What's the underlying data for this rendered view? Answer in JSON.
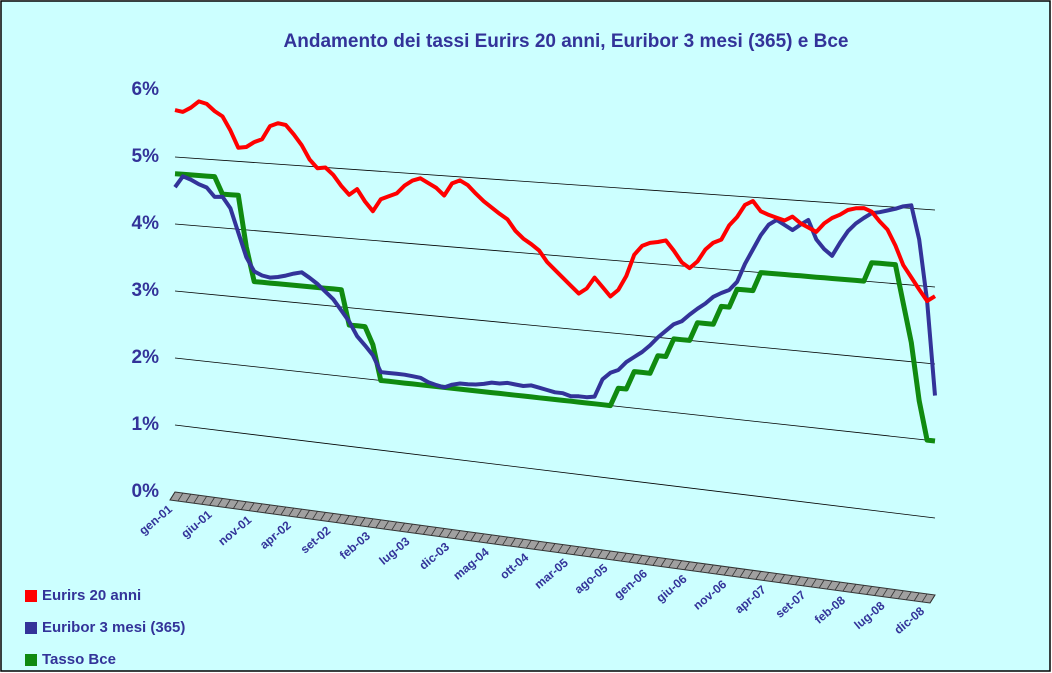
{
  "chart_data": {
    "type": "line",
    "title": "Andamento dei tassi Eurirs 20 anni, Euribor 3 mesi (365) e Bce",
    "categories": [
      "gen-01",
      null,
      null,
      null,
      null,
      "giu-01",
      null,
      null,
      null,
      null,
      "nov-01",
      null,
      null,
      null,
      null,
      "apr-02",
      null,
      null,
      null,
      null,
      "set-02",
      null,
      null,
      null,
      null,
      "feb-03",
      null,
      null,
      null,
      null,
      "lug-03",
      null,
      null,
      null,
      null,
      "dic-03",
      null,
      null,
      null,
      null,
      "mag-04",
      null,
      null,
      null,
      null,
      "ott-04",
      null,
      null,
      null,
      null,
      "mar-05",
      null,
      null,
      null,
      null,
      "ago-05",
      null,
      null,
      null,
      null,
      "gen-06",
      null,
      null,
      null,
      null,
      "giu-06",
      null,
      null,
      null,
      null,
      "nov-06",
      null,
      null,
      null,
      null,
      "apr-07",
      null,
      null,
      null,
      null,
      "set-07",
      null,
      null,
      null,
      null,
      "feb-08",
      null,
      null,
      null,
      null,
      "lug-08",
      null,
      null,
      null,
      null,
      "dic-08",
      null
    ],
    "series": [
      {
        "name": "Eurirs 20 anni",
        "color": "#ff0000",
        "values": [
          5.7,
          5.68,
          5.75,
          5.85,
          5.82,
          5.72,
          5.65,
          5.45,
          5.2,
          5.22,
          5.3,
          5.35,
          5.55,
          5.6,
          5.58,
          5.45,
          5.3,
          5.1,
          4.98,
          5.0,
          4.9,
          4.75,
          4.63,
          4.72,
          4.55,
          4.42,
          4.6,
          4.65,
          4.7,
          4.82,
          4.9,
          4.94,
          4.88,
          4.82,
          4.72,
          4.9,
          4.95,
          4.89,
          4.78,
          4.68,
          4.6,
          4.52,
          4.45,
          4.3,
          4.2,
          4.13,
          4.05,
          3.9,
          3.8,
          3.7,
          3.6,
          3.5,
          3.58,
          3.74,
          3.62,
          3.5,
          3.6,
          3.8,
          4.1,
          4.23,
          4.28,
          4.3,
          4.33,
          4.2,
          4.05,
          3.98,
          4.08,
          4.25,
          4.35,
          4.4,
          4.6,
          4.72,
          4.89,
          4.95,
          4.82,
          4.78,
          4.75,
          4.72,
          4.78,
          4.7,
          4.65,
          4.6,
          4.72,
          4.8,
          4.85,
          4.92,
          4.95,
          4.96,
          4.92,
          4.8,
          4.7,
          4.5,
          4.25,
          4.1,
          3.95,
          3.81,
          3.88
        ]
      },
      {
        "name": "Euribor 3 mesi  (365)",
        "color": "#333399",
        "values": [
          4.55,
          4.72,
          4.68,
          4.62,
          4.58,
          4.45,
          4.46,
          4.3,
          3.95,
          3.6,
          3.4,
          3.35,
          3.33,
          3.35,
          3.38,
          3.42,
          3.45,
          3.38,
          3.3,
          3.2,
          3.1,
          2.95,
          2.8,
          2.6,
          2.48,
          2.35,
          2.12,
          2.12,
          2.12,
          2.12,
          2.11,
          2.1,
          2.05,
          2.02,
          2.0,
          2.05,
          2.08,
          2.08,
          2.09,
          2.11,
          2.14,
          2.14,
          2.16,
          2.15,
          2.14,
          2.16,
          2.14,
          2.12,
          2.1,
          2.1,
          2.07,
          2.08,
          2.08,
          2.1,
          2.35,
          2.45,
          2.5,
          2.62,
          2.7,
          2.78,
          2.88,
          3.0,
          3.1,
          3.2,
          3.25,
          3.35,
          3.44,
          3.52,
          3.62,
          3.68,
          3.73,
          3.85,
          4.1,
          4.3,
          4.5,
          4.65,
          4.72,
          4.66,
          4.6,
          4.68,
          4.75,
          4.5,
          4.38,
          4.3,
          4.48,
          4.64,
          4.75,
          4.83,
          4.9,
          4.92,
          4.95,
          4.98,
          5.02,
          5.04,
          4.6,
          3.81,
          2.59
        ]
      },
      {
        "name": "Tasso Bce",
        "color": "#108a10",
        "values": [
          4.75,
          4.75,
          4.75,
          4.75,
          4.75,
          4.75,
          4.5,
          4.5,
          4.5,
          3.75,
          3.25,
          3.25,
          3.25,
          3.25,
          3.25,
          3.25,
          3.25,
          3.25,
          3.25,
          3.25,
          3.25,
          3.25,
          2.75,
          2.75,
          2.75,
          2.5,
          2.0,
          2.0,
          2.0,
          2.0,
          2.0,
          2.0,
          2.0,
          2.0,
          2.0,
          2.0,
          2.0,
          2.0,
          2.0,
          2.0,
          2.0,
          2.0,
          2.0,
          2.0,
          2.0,
          2.0,
          2.0,
          2.0,
          2.0,
          2.0,
          2.0,
          2.0,
          2.0,
          2.0,
          2.0,
          2.0,
          2.25,
          2.25,
          2.5,
          2.5,
          2.5,
          2.75,
          2.75,
          3.0,
          3.0,
          3.0,
          3.25,
          3.25,
          3.25,
          3.5,
          3.5,
          3.75,
          3.75,
          3.75,
          4.0,
          4.0,
          4.0,
          4.0,
          4.0,
          4.0,
          4.0,
          4.0,
          4.0,
          4.0,
          4.0,
          4.0,
          4.0,
          4.0,
          4.25,
          4.25,
          4.25,
          4.25,
          3.75,
          3.25,
          2.5,
          2.0,
          2.0
        ]
      }
    ],
    "ylim": [
      0,
      6
    ],
    "yticks": [
      {
        "value": 0,
        "label": "0%"
      },
      {
        "value": 1,
        "label": "1%"
      },
      {
        "value": 2,
        "label": "2%"
      },
      {
        "value": 3,
        "label": "3%"
      },
      {
        "value": 4,
        "label": "4%"
      },
      {
        "value": 5,
        "label": "5%"
      },
      {
        "value": 6,
        "label": "6%"
      }
    ],
    "grid": true
  }
}
